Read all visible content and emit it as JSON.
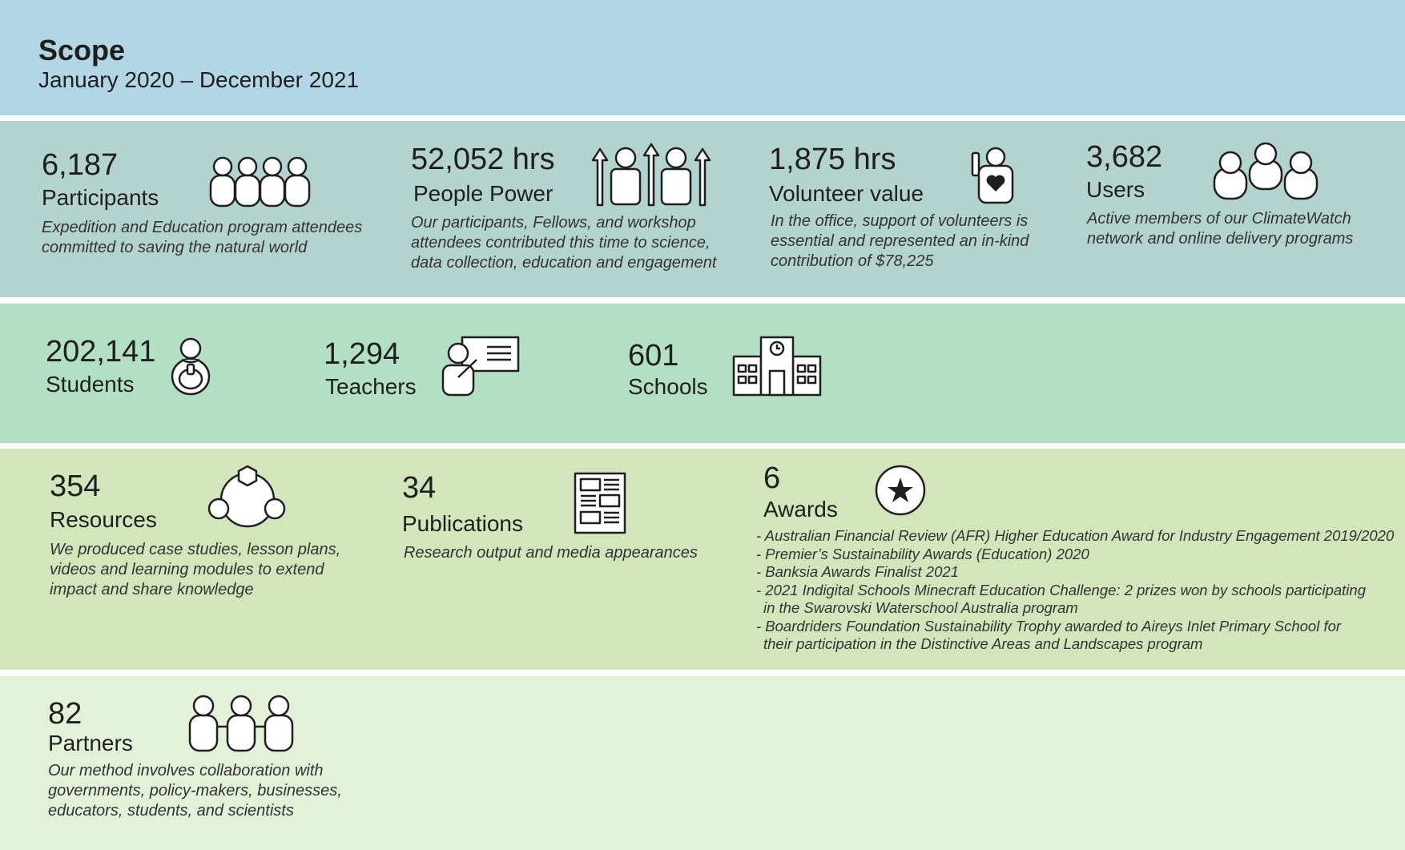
{
  "header": {
    "title": "Scope",
    "subtitle": "January 2020 – December 2021"
  },
  "stats": {
    "participants": {
      "value": "6,187",
      "label": "Participants",
      "icon": "group-of-people-icon",
      "desc": [
        "Expedition and Education program attendees",
        "committed to saving the natural world"
      ]
    },
    "people_power": {
      "value": "52,052 hrs",
      "label": "People Power",
      "icon": "people-with-up-arrows-icon",
      "desc": [
        "Our participants, Fellows, and workshop",
        "attendees contributed this time to science,",
        "data collection, education and engagement"
      ]
    },
    "volunteer_value": {
      "value": "1,875 hrs",
      "label": "Volunteer value",
      "icon": "person-with-heart-icon",
      "desc": [
        "In the office, support of volunteers is",
        "essential and represented an in-kind",
        "contribution of $78,225"
      ]
    },
    "users": {
      "value": "3,682",
      "label": "Users",
      "icon": "users-group-icon",
      "desc": [
        "Active members of our ClimateWatch",
        "network and online delivery programs"
      ]
    },
    "students": {
      "value": "202,141",
      "label": "Students",
      "icon": "student-backpack-icon"
    },
    "teachers": {
      "value": "1,294",
      "label": "Teachers",
      "icon": "teacher-whiteboard-icon"
    },
    "schools": {
      "value": "601",
      "label": "Schools",
      "icon": "school-building-icon"
    },
    "resources": {
      "value": "354",
      "label": "Resources",
      "icon": "resources-network-icon",
      "desc": [
        "We produced case studies, lesson plans,",
        "videos and learning modules to extend",
        "impact and share knowledge"
      ]
    },
    "publications": {
      "value": "34",
      "label": "Publications",
      "icon": "newspaper-icon",
      "desc": [
        "Research output and media appearances"
      ]
    },
    "awards": {
      "value": "6",
      "label": "Awards",
      "icon": "star-badge-icon",
      "items": [
        "- Australian Financial Review (AFR) Higher Education Award for Industry Engagement 2019/2020",
        "- Premier’s Sustainability Awards (Education) 2020",
        "- Banksia Awards Finalist 2021",
        "- 2021 Indigital Schools Minecraft Education Challenge: 2 prizes won by schools participating",
        "in the Swarovski Waterschool Australia program",
        "- Boardriders Foundation Sustainability Trophy awarded to Aireys Inlet Primary School for",
        "their participation in the Distinctive Areas and Landscapes program"
      ]
    },
    "partners": {
      "value": "82",
      "label": "Partners",
      "icon": "partners-linked-icon",
      "desc": [
        "Our method involves collaboration with",
        "governments, policy-makers, businesses,",
        "educators, students, and scientists"
      ]
    }
  }
}
